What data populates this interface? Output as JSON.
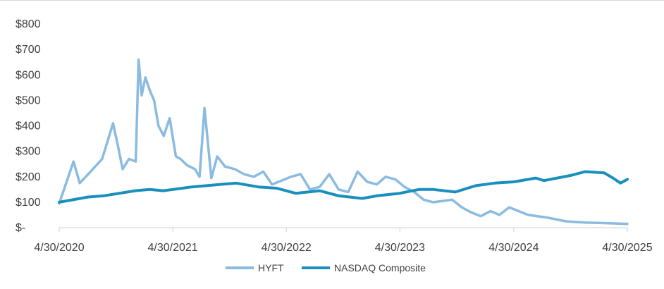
{
  "chart_data": {
    "type": "line",
    "title": "",
    "xlabel": "",
    "ylabel": "",
    "ylim": [
      0,
      800
    ],
    "yticks": [
      0,
      100,
      200,
      300,
      400,
      500,
      600,
      700,
      800
    ],
    "ytick_labels": [
      "$-",
      "$100",
      "$200",
      "$300",
      "$400",
      "$500",
      "$600",
      "$700",
      "$800"
    ],
    "xtick_labels": [
      "4/30/2020",
      "4/30/2021",
      "4/30/2022",
      "4/30/2023",
      "4/30/2024",
      "4/30/2025"
    ],
    "xlim": [
      "4/30/2020",
      "4/30/2025"
    ],
    "grid": false,
    "legend_position": "bottom",
    "series": [
      {
        "name": "HYFT",
        "color": "#8bbbe0",
        "x": [
          "4/30/2020",
          "6/15/2020",
          "7/5/2020",
          "8/1/2020",
          "9/15/2020",
          "10/20/2020",
          "11/5/2020",
          "11/20/2020",
          "12/10/2020",
          "1/1/2021",
          "1/10/2021",
          "1/20/2021",
          "2/1/2021",
          "2/15/2021",
          "3/1/2021",
          "3/15/2021",
          "4/1/2021",
          "4/20/2021",
          "5/10/2021",
          "5/25/2021",
          "6/15/2021",
          "7/10/2021",
          "7/25/2021",
          "8/10/2021",
          "9/1/2021",
          "9/20/2021",
          "10/15/2021",
          "11/15/2021",
          "12/15/2021",
          "1/15/2022",
          "2/15/2022",
          "3/15/2022",
          "4/15/2022",
          "5/15/2022",
          "6/15/2022",
          "7/15/2022",
          "8/15/2022",
          "9/15/2022",
          "10/15/2022",
          "11/15/2022",
          "12/15/2022",
          "1/15/2023",
          "2/15/2023",
          "3/15/2023",
          "4/15/2023",
          "5/15/2023",
          "6/15/2023",
          "7/15/2023",
          "8/15/2023",
          "9/15/2023",
          "10/15/2023",
          "11/15/2023",
          "12/15/2023",
          "1/15/2024",
          "2/15/2024",
          "3/15/2024",
          "4/15/2024",
          "6/15/2024",
          "8/15/2024",
          "10/15/2024",
          "12/15/2024",
          "2/15/2025",
          "4/30/2025"
        ],
        "values": [
          95,
          260,
          175,
          210,
          270,
          410,
          320,
          230,
          270,
          260,
          660,
          520,
          590,
          540,
          500,
          400,
          360,
          430,
          280,
          270,
          245,
          230,
          200,
          470,
          195,
          280,
          240,
          230,
          210,
          200,
          220,
          170,
          185,
          200,
          210,
          150,
          160,
          210,
          150,
          140,
          220,
          180,
          170,
          200,
          190,
          160,
          140,
          110,
          100,
          105,
          110,
          80,
          60,
          45,
          65,
          50,
          80,
          50,
          40,
          25,
          20,
          18,
          15
        ]
      },
      {
        "name": "NASDAQ Composite",
        "color": "#1a8fbe",
        "x": [
          "4/30/2020",
          "7/30/2020",
          "9/20/2020",
          "12/30/2020",
          "2/15/2021",
          "3/30/2021",
          "6/30/2021",
          "9/30/2021",
          "11/20/2021",
          "1/30/2022",
          "3/30/2022",
          "5/30/2022",
          "8/15/2022",
          "10/15/2022",
          "12/30/2022",
          "2/15/2023",
          "4/30/2023",
          "6/30/2023",
          "8/15/2023",
          "10/25/2023",
          "12/30/2023",
          "2/28/2024",
          "4/30/2024",
          "7/10/2024",
          "8/5/2024",
          "10/30/2024",
          "12/15/2024",
          "2/15/2025",
          "3/15/2025",
          "4/8/2025",
          "4/30/2025"
        ],
        "values": [
          100,
          120,
          125,
          145,
          150,
          145,
          160,
          170,
          175,
          160,
          155,
          135,
          145,
          125,
          115,
          125,
          135,
          150,
          150,
          140,
          165,
          175,
          180,
          195,
          185,
          205,
          220,
          215,
          195,
          175,
          190
        ]
      }
    ]
  }
}
